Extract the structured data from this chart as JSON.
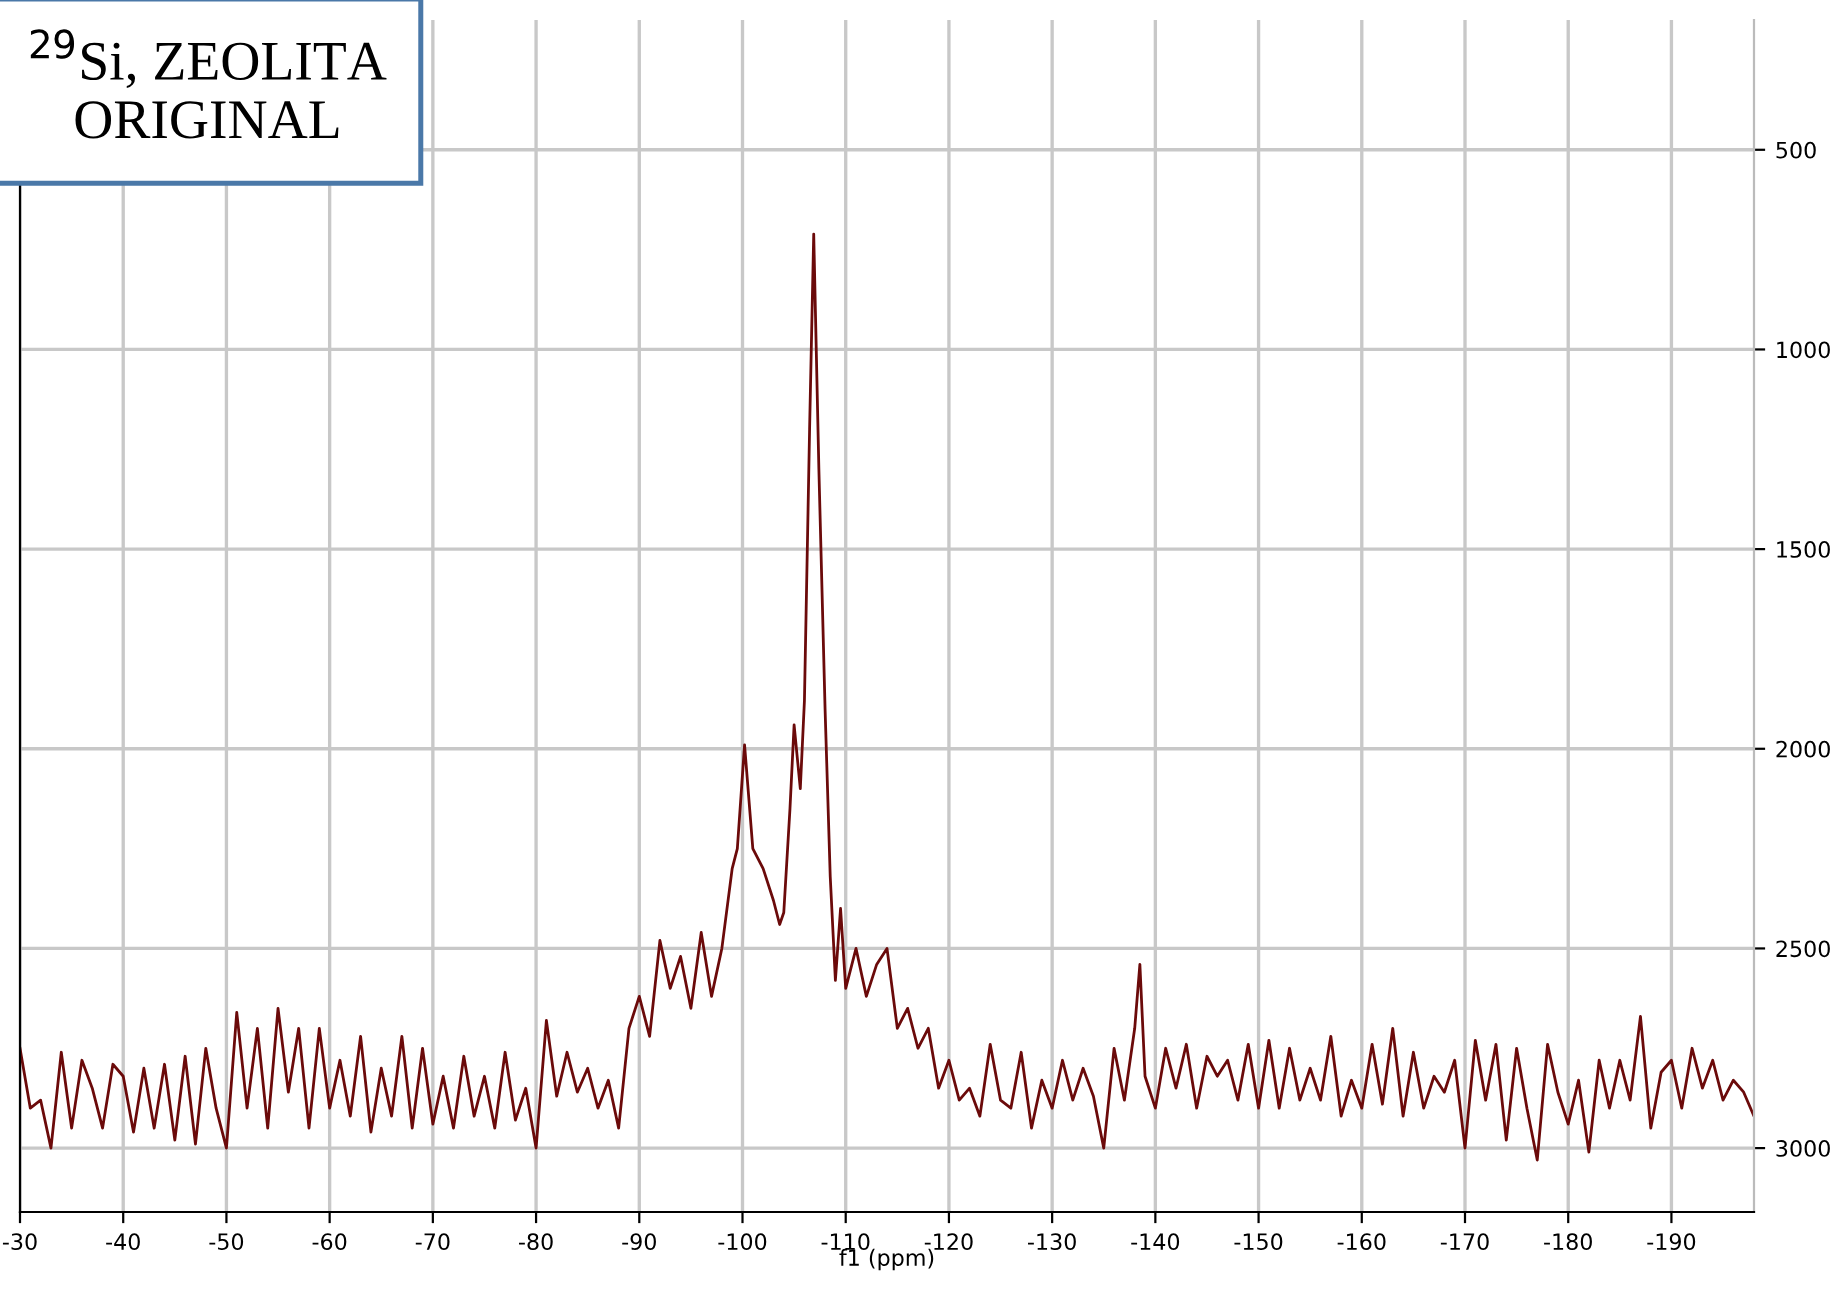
{
  "chart_data": {
    "type": "line",
    "xlabel": "f1 (ppm)",
    "annotations": [
      "$^{29}$Si, ZEOLITA\nORIGINAL"
    ],
    "xlim": [
      -30,
      -198
    ],
    "xticks": [
      -30,
      -40,
      -50,
      -60,
      -70,
      -80,
      -90,
      -100,
      -110,
      -120,
      -130,
      -140,
      -150,
      -160,
      -170,
      -180,
      -190
    ],
    "ylim": [
      3160,
      175
    ],
    "yticks": [
      500,
      1000,
      1500,
      2000,
      2500,
      3000
    ],
    "grid": true,
    "marker": "none",
    "line_style": "solid",
    "series": [
      {
        "color": "#6b0a0a",
        "x": [
          -30,
          -31,
          -32,
          -33,
          -34,
          -35,
          -36,
          -37,
          -38,
          -39,
          -40,
          -41,
          -42,
          -43,
          -44,
          -45,
          -46,
          -47,
          -48,
          -49,
          -50,
          -51,
          -52,
          -53,
          -54,
          -55,
          -56,
          -57,
          -58,
          -59,
          -60,
          -61,
          -62,
          -63,
          -64,
          -65,
          -66,
          -67,
          -68,
          -69,
          -70,
          -71,
          -72,
          -73,
          -74,
          -75,
          -76,
          -77,
          -78,
          -79,
          -80,
          -81,
          -82,
          -83,
          -84,
          -85,
          -86,
          -87,
          -88,
          -89,
          -90,
          -91,
          -92,
          -93,
          -94,
          -95,
          -96,
          -97,
          -98,
          -99,
          -99.5,
          -100.2,
          -101,
          -102,
          -103,
          -103.6,
          -104,
          -104.6,
          -105,
          -105.6,
          -106,
          -106.5,
          -106.9,
          -107.4,
          -108,
          -108.5,
          -109,
          -109.5,
          -110,
          -111,
          -112,
          -113,
          -114,
          -115,
          -116,
          -117,
          -118,
          -119,
          -120,
          -121,
          -122,
          -123,
          -124,
          -125,
          -126,
          -127,
          -128,
          -129,
          -130,
          -131,
          -132,
          -133,
          -134,
          -135,
          -136,
          -137,
          -138,
          -138.5,
          -139,
          -140,
          -141,
          -142,
          -143,
          -144,
          -145,
          -146,
          -147,
          -148,
          -149,
          -150,
          -151,
          -152,
          -153,
          -154,
          -155,
          -156,
          -157,
          -158,
          -159,
          -160,
          -161,
          -162,
          -163,
          -164,
          -165,
          -166,
          -167,
          -168,
          -169,
          -170,
          -171,
          -172,
          -173,
          -174,
          -175,
          -176,
          -177,
          -178,
          -179,
          -180,
          -181,
          -182,
          -183,
          -184,
          -185,
          -186,
          -187,
          -188,
          -189,
          -190,
          -191,
          -192,
          -193,
          -194,
          -195,
          -196,
          -197,
          -198
        ],
        "values": [
          2750,
          2900,
          2880,
          3000,
          2760,
          2950,
          2780,
          2850,
          2950,
          2790,
          2820,
          2960,
          2800,
          2950,
          2790,
          2980,
          2770,
          2990,
          2750,
          2900,
          3000,
          2660,
          2900,
          2700,
          2950,
          2650,
          2860,
          2700,
          2950,
          2700,
          2900,
          2780,
          2920,
          2720,
          2960,
          2800,
          2920,
          2720,
          2950,
          2750,
          2940,
          2820,
          2950,
          2770,
          2920,
          2820,
          2950,
          2760,
          2930,
          2850,
          3000,
          2680,
          2870,
          2760,
          2860,
          2800,
          2900,
          2830,
          2950,
          2700,
          2620,
          2720,
          2480,
          2600,
          2520,
          2650,
          2460,
          2620,
          2500,
          2300,
          2250,
          1990,
          2250,
          2300,
          2380,
          2440,
          2410,
          2150,
          1940,
          2100,
          1880,
          1200,
          711,
          1300,
          1900,
          2320,
          2580,
          2400,
          2600,
          2500,
          2620,
          2540,
          2500,
          2700,
          2650,
          2750,
          2700,
          2850,
          2780,
          2880,
          2850,
          2920,
          2740,
          2880,
          2900,
          2760,
          2950,
          2830,
          2900,
          2780,
          2880,
          2800,
          2870,
          3000,
          2750,
          2880,
          2700,
          2540,
          2820,
          2900,
          2750,
          2850,
          2740,
          2900,
          2770,
          2820,
          2780,
          2880,
          2740,
          2900,
          2730,
          2900,
          2750,
          2880,
          2800,
          2880,
          2720,
          2920,
          2830,
          2900,
          2740,
          2890,
          2700,
          2920,
          2760,
          2900,
          2820,
          2860,
          2780,
          3000,
          2730,
          2880,
          2740,
          2980,
          2750,
          2900,
          3030,
          2740,
          2860,
          2940,
          2830,
          3010,
          2780,
          2900,
          2780,
          2880,
          2670,
          2950,
          2810,
          2780,
          2900,
          2750,
          2850,
          2780,
          2880,
          2830,
          2860,
          2920
        ]
      }
    ]
  }
}
